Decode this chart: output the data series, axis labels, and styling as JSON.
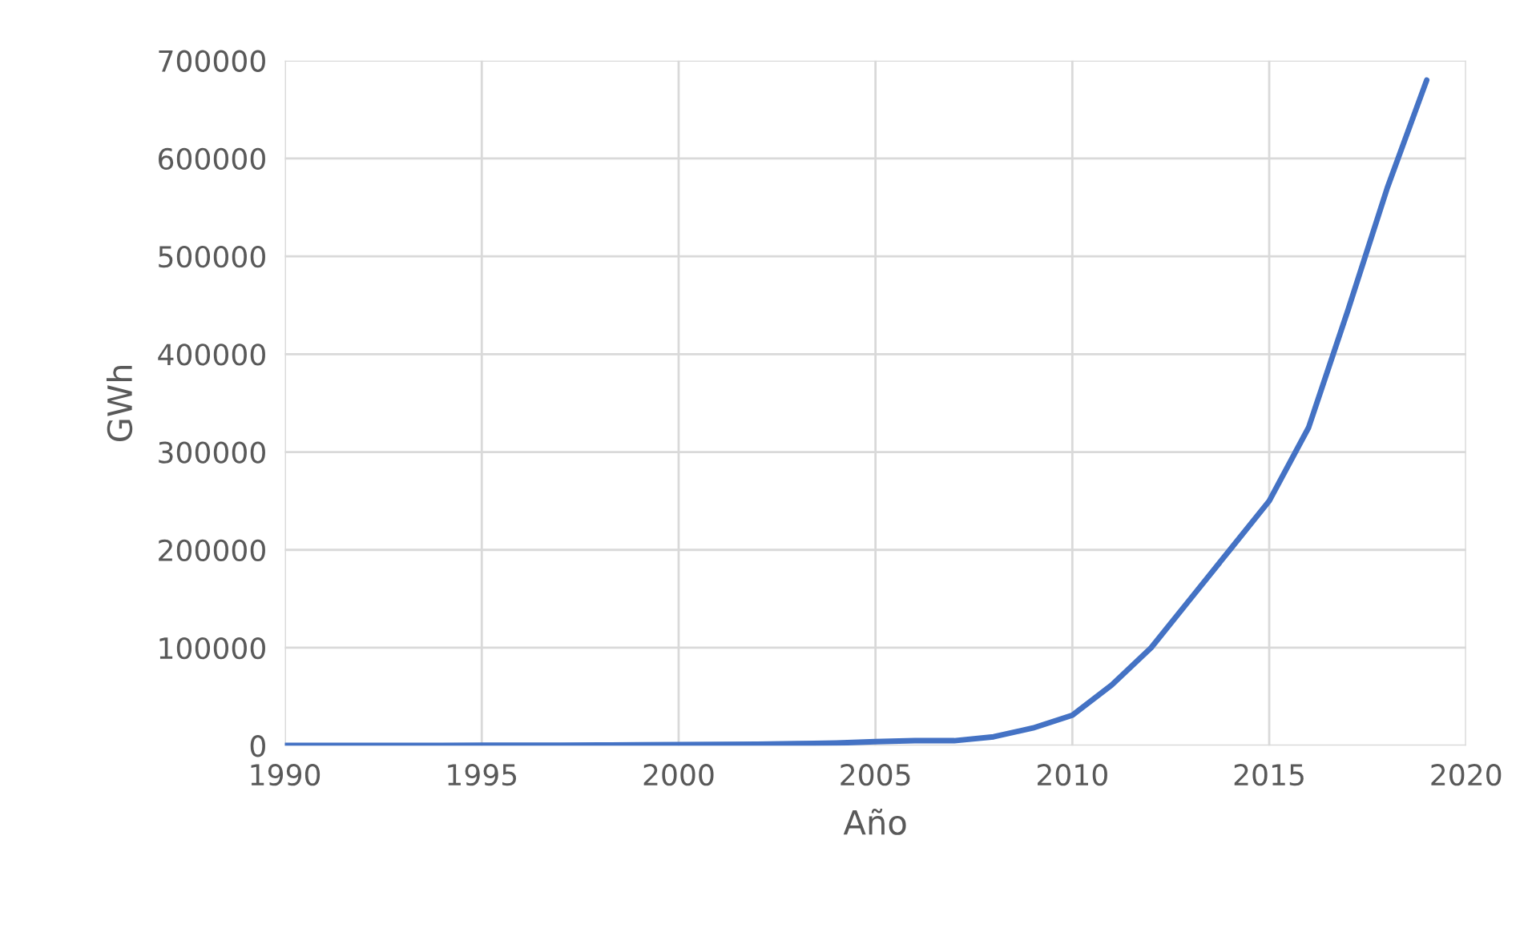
{
  "chart_data": {
    "type": "line",
    "xlabel": "Año",
    "ylabel": "GWh",
    "x": [
      1990,
      1991,
      1992,
      1993,
      1994,
      1995,
      1996,
      1997,
      1998,
      1999,
      2000,
      2001,
      2002,
      2003,
      2004,
      2005,
      2006,
      2007,
      2008,
      2009,
      2010,
      2011,
      2012,
      2013,
      2014,
      2015,
      2016,
      2017,
      2018,
      2019
    ],
    "series": [
      {
        "color": "#4472c4",
        "values": [
          100,
          100,
          100,
          200,
          200,
          300,
          300,
          400,
          500,
          700,
          1000,
          1200,
          1500,
          2000,
          2600,
          4000,
          5000,
          5000,
          9000,
          18000,
          31000,
          62000,
          100000,
          150000,
          200000,
          250000,
          325000,
          445000,
          570000,
          680000
        ]
      }
    ],
    "xlim": [
      1990,
      2020
    ],
    "xticks": [
      1990,
      1995,
      2000,
      2005,
      2010,
      2015,
      2020
    ],
    "ylim": [
      0,
      700000
    ],
    "yticks": [
      0,
      100000,
      200000,
      300000,
      400000,
      500000,
      600000,
      700000
    ],
    "grid": true,
    "marker": "none",
    "line_style": "solid"
  }
}
